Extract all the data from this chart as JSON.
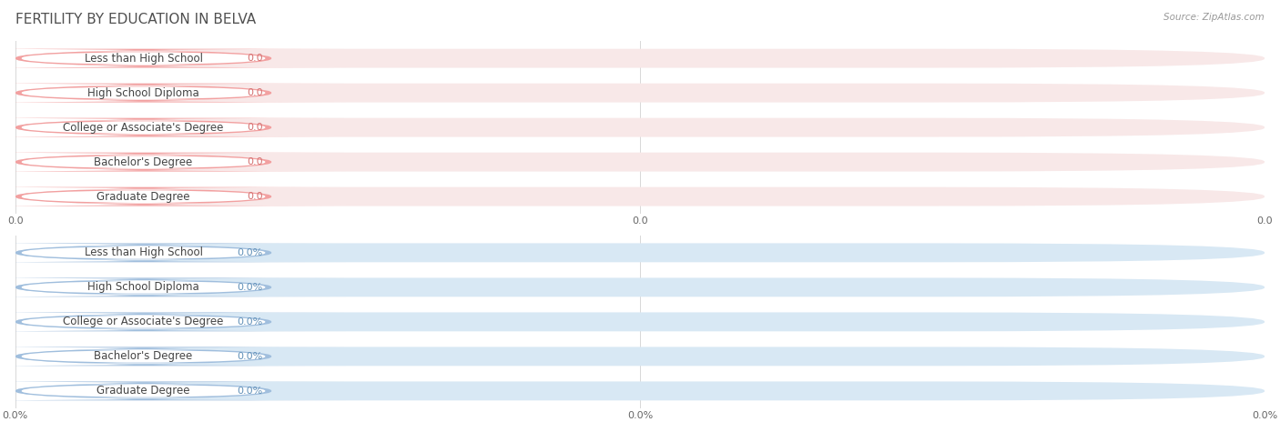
{
  "title": "FERTILITY BY EDUCATION IN BELVA",
  "source_text": "Source: ZipAtlas.com",
  "top_categories": [
    "Less than High School",
    "High School Diploma",
    "College or Associate's Degree",
    "Bachelor's Degree",
    "Graduate Degree"
  ],
  "top_values": [
    0.0,
    0.0,
    0.0,
    0.0,
    0.0
  ],
  "top_value_labels": [
    "0.0",
    "0.0",
    "0.0",
    "0.0",
    "0.0"
  ],
  "top_bar_color": "#f2a0a0",
  "top_bg_color": "#f8e8e8",
  "top_label_color": "#d47070",
  "top_x_tick_labels": [
    "0.0",
    "0.0",
    "0.0"
  ],
  "bottom_categories": [
    "Less than High School",
    "High School Diploma",
    "College or Associate's Degree",
    "Bachelor's Degree",
    "Graduate Degree"
  ],
  "bottom_values": [
    0.0,
    0.0,
    0.0,
    0.0,
    0.0
  ],
  "bottom_value_labels": [
    "0.0%",
    "0.0%",
    "0.0%",
    "0.0%",
    "0.0%"
  ],
  "bottom_bar_color": "#a0bedd",
  "bottom_bg_color": "#d8e8f4",
  "bottom_label_color": "#6090b8",
  "bottom_x_tick_labels": [
    "0.0%",
    "0.0%",
    "0.0%"
  ],
  "fig_bg_color": "#ffffff",
  "title_color": "#505050",
  "title_fontsize": 11,
  "label_fontsize": 8.5,
  "value_fontsize": 8,
  "tick_fontsize": 8,
  "source_fontsize": 7.5
}
